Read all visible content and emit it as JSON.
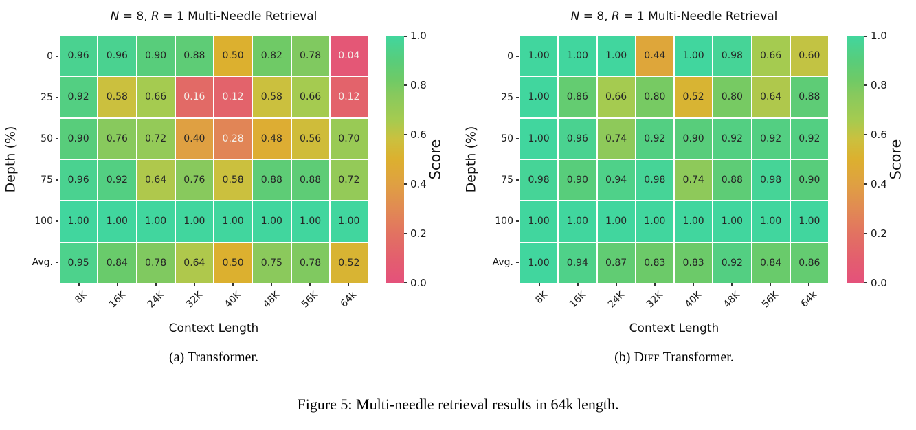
{
  "figure_caption": "Figure 5: Multi-needle retrieval results in 64k length.",
  "colormap": {
    "stops": [
      [
        0.0,
        "#e4517b"
      ],
      [
        0.1,
        "#e35f6e"
      ],
      [
        0.2,
        "#e27261"
      ],
      [
        0.3,
        "#e18a53"
      ],
      [
        0.4,
        "#dfa042"
      ],
      [
        0.5,
        "#dcb02f"
      ],
      [
        0.58,
        "#cbc03e"
      ],
      [
        0.66,
        "#a5cb50"
      ],
      [
        0.76,
        "#88c95d"
      ],
      [
        0.82,
        "#6fca66"
      ],
      [
        0.9,
        "#58cd7b"
      ],
      [
        1.0,
        "#41d69e"
      ]
    ]
  },
  "cell_text": {
    "dark": "#262626",
    "light": "#f4efe9",
    "light_threshold": 0.3
  },
  "chart_data": [
    {
      "type": "heatmap",
      "title": "N = 8, R = 1 Multi-Needle Retrieval",
      "title_parts": {
        "var1": "N",
        "mid1": " = 8, ",
        "var2": "R",
        "mid2": " = 1 ",
        "rest": "Multi-Needle Retrieval"
      },
      "xlabel": "Context Length",
      "ylabel": "Depth (%)",
      "x_categories": [
        "8K",
        "16K",
        "24K",
        "32K",
        "40K",
        "48K",
        "56K",
        "64k"
      ],
      "y_categories": [
        "0",
        "25",
        "50",
        "75",
        "100",
        "Avg."
      ],
      "values": [
        [
          0.96,
          0.96,
          0.9,
          0.88,
          0.5,
          0.82,
          0.78,
          0.04
        ],
        [
          0.92,
          0.58,
          0.66,
          0.16,
          0.12,
          0.58,
          0.66,
          0.12
        ],
        [
          0.9,
          0.76,
          0.72,
          0.4,
          0.28,
          0.48,
          0.56,
          0.7
        ],
        [
          0.96,
          0.92,
          0.64,
          0.76,
          0.58,
          0.88,
          0.88,
          0.72
        ],
        [
          1.0,
          1.0,
          1.0,
          1.0,
          1.0,
          1.0,
          1.0,
          1.0
        ],
        [
          0.95,
          0.84,
          0.78,
          0.64,
          0.5,
          0.75,
          0.78,
          0.52
        ]
      ],
      "vmin": 0.0,
      "vmax": 1.0,
      "colorbar_label": "Score",
      "colorbar_ticks": [
        1.0,
        0.8,
        0.6,
        0.4,
        0.2,
        0.0
      ],
      "caption_parts": {
        "prefix": "(a) ",
        "sc_big": "",
        "sc_small": "",
        "rest": "Transformer."
      }
    },
    {
      "type": "heatmap",
      "title": "N = 8, R = 1 Multi-Needle Retrieval",
      "title_parts": {
        "var1": "N",
        "mid1": " = 8, ",
        "var2": "R",
        "mid2": " = 1 ",
        "rest": "Multi-Needle Retrieval"
      },
      "xlabel": "Context Length",
      "ylabel": "Depth (%)",
      "x_categories": [
        "8K",
        "16K",
        "24K",
        "32K",
        "40K",
        "48K",
        "56K",
        "64k"
      ],
      "y_categories": [
        "0",
        "25",
        "50",
        "75",
        "100",
        "Avg."
      ],
      "values": [
        [
          1.0,
          1.0,
          1.0,
          0.44,
          1.0,
          0.98,
          0.66,
          0.6
        ],
        [
          1.0,
          0.86,
          0.66,
          0.8,
          0.52,
          0.8,
          0.64,
          0.88
        ],
        [
          1.0,
          0.96,
          0.74,
          0.92,
          0.9,
          0.92,
          0.92,
          0.92
        ],
        [
          0.98,
          0.9,
          0.94,
          0.98,
          0.74,
          0.88,
          0.98,
          0.9
        ],
        [
          1.0,
          1.0,
          1.0,
          1.0,
          1.0,
          1.0,
          1.0,
          1.0
        ],
        [
          1.0,
          0.94,
          0.87,
          0.83,
          0.83,
          0.92,
          0.84,
          0.86
        ]
      ],
      "vmin": 0.0,
      "vmax": 1.0,
      "colorbar_label": "Score",
      "colorbar_ticks": [
        1.0,
        0.8,
        0.6,
        0.4,
        0.2,
        0.0
      ],
      "caption_parts": {
        "prefix": "(b) ",
        "sc_big": "D",
        "sc_small": "IFF",
        "rest": " Transformer."
      }
    }
  ]
}
